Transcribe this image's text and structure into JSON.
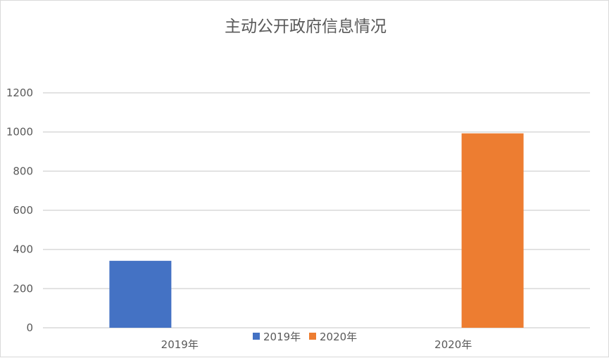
{
  "chart_data": {
    "type": "bar",
    "title": "主动公开政府信息情况",
    "categories": [
      "2019年",
      "2020年"
    ],
    "series": [
      {
        "name": "2019年",
        "color": "#4472C4",
        "values": [
          342,
          null
        ]
      },
      {
        "name": "2020年",
        "color": "#ED7D31",
        "values": [
          null,
          993
        ]
      }
    ],
    "ylim": [
      0,
      1200
    ],
    "yticks": [
      0,
      200,
      400,
      600,
      800,
      1000,
      1200
    ],
    "grid": true,
    "legend": "bottom",
    "xlabel": "",
    "ylabel": ""
  }
}
